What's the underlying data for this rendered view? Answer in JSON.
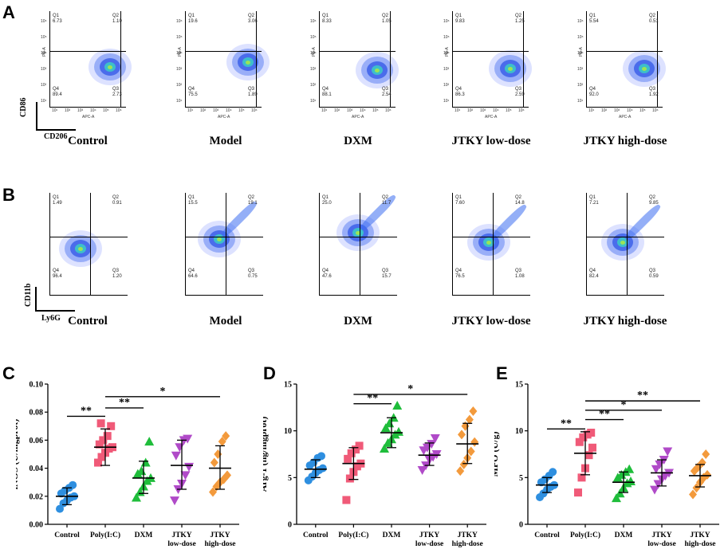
{
  "panels": {
    "A": {
      "letter": "A",
      "x_marker": "CD206",
      "y_marker": "CD86",
      "x_axis_title": "APC-A",
      "y_axis_title": "PE-A",
      "plots": [
        {
          "group": "Control",
          "q1": "6.73",
          "q2": "1.10",
          "q3": "2.73",
          "q4": "89.4"
        },
        {
          "group": "Model",
          "q1": "19.6",
          "q2": "3.06",
          "q3": "1.89",
          "q4": "75.5"
        },
        {
          "group": "DXM",
          "q1": "8.33",
          "q2": "1.05",
          "q3": "2.54",
          "q4": "88.1"
        },
        {
          "group": "JTKY low-dose",
          "q1": "9.83",
          "q2": "1.25",
          "q3": "2.59",
          "q4": "86.3"
        },
        {
          "group": "JTKY high-dose",
          "q1": "5.54",
          "q2": "0.51",
          "q3": "1.92",
          "q4": "92.0"
        }
      ]
    },
    "B": {
      "letter": "B",
      "x_marker": "Ly6G",
      "y_marker": "CD11b",
      "plots": [
        {
          "group": "Control",
          "q1": "1.49",
          "q2": "0.91",
          "q3": "1.20",
          "q4": "96.4"
        },
        {
          "group": "Model",
          "q1": "15.5",
          "q2": "19.1",
          "q3": "0.75",
          "q4": "64.6"
        },
        {
          "group": "DXM",
          "q1": "25.0",
          "q2": "11.7",
          "q3": "15.7",
          "q4": "47.6"
        },
        {
          "group": "JTKY low-dose",
          "q1": "7.60",
          "q2": "14.8",
          "q3": "1.08",
          "q4": "76.5"
        },
        {
          "group": "JTKY high-dose",
          "q1": "7.21",
          "q2": "9.85",
          "q3": "0.59",
          "q4": "82.4"
        }
      ]
    },
    "C": {
      "letter": "C"
    },
    "D": {
      "letter": "D"
    },
    "E": {
      "letter": "E"
    }
  },
  "quadrant_labels": [
    "Q1",
    "Q2",
    "Q3",
    "Q4"
  ],
  "tick_labels": [
    "10¹",
    "10²",
    "10³",
    "10⁴",
    "10⁵",
    "10⁶"
  ],
  "colors": {
    "Control": "#2e8fe0",
    "Poly(I:C)": "#f05a78",
    "DXM": "#1fbd3b",
    "JTKY low-dose": "#b04ac8",
    "JTKY high-dose": "#f39a3c"
  },
  "chart_data": [
    {
      "type": "scatter",
      "panel": "C",
      "ylabel": "iNOS (U/mgprot)",
      "ylim": [
        0.0,
        0.1
      ],
      "yticks": [
        "0.00",
        "0.02",
        "0.04",
        "0.06",
        "0.08",
        "0.10"
      ],
      "categories": [
        [
          "Control"
        ],
        [
          "Poly(I:C)"
        ],
        [
          "DXM"
        ],
        [
          "JTKY",
          "low-dose"
        ],
        [
          "JTKY",
          "high-dose"
        ]
      ],
      "groups": [
        {
          "name": "Control",
          "marker": "circle",
          "mean": 0.02,
          "sd_low": 0.014,
          "sd_high": 0.026,
          "points": [
            0.011,
            0.015,
            0.017,
            0.019,
            0.02,
            0.022,
            0.024,
            0.026,
            0.028
          ]
        },
        {
          "name": "Poly(I:C)",
          "marker": "square",
          "mean": 0.055,
          "sd_low": 0.042,
          "sd_high": 0.068,
          "points": [
            0.044,
            0.048,
            0.051,
            0.054,
            0.055,
            0.057,
            0.06,
            0.063,
            0.07,
            0.072
          ]
        },
        {
          "name": "DXM",
          "marker": "triangle-up",
          "mean": 0.033,
          "sd_low": 0.022,
          "sd_high": 0.045,
          "points": [
            0.019,
            0.023,
            0.027,
            0.031,
            0.033,
            0.036,
            0.038,
            0.044,
            0.059
          ]
        },
        {
          "name": "JTKY low-dose",
          "marker": "triangle-down",
          "mean": 0.042,
          "sd_low": 0.025,
          "sd_high": 0.06,
          "points": [
            0.017,
            0.025,
            0.029,
            0.035,
            0.041,
            0.049,
            0.055,
            0.06,
            0.061
          ]
        },
        {
          "name": "JTKY high-dose",
          "marker": "diamond",
          "mean": 0.04,
          "sd_low": 0.025,
          "sd_high": 0.056,
          "points": [
            0.023,
            0.027,
            0.03,
            0.032,
            0.035,
            0.044,
            0.05,
            0.059,
            0.063
          ]
        }
      ],
      "significance": [
        {
          "from": 0,
          "to": 1,
          "label": "**",
          "y": 0.077
        },
        {
          "from": 1,
          "to": 2,
          "label": "**",
          "y": 0.083
        },
        {
          "from": 1,
          "to": 4,
          "label": "*",
          "y": 0.091
        }
      ]
    },
    {
      "type": "scatter",
      "panel": "D",
      "ylabel": "Arg-1 (ng/mgprot)",
      "ylim": [
        0,
        15
      ],
      "yticks": [
        "0",
        "5",
        "10",
        "15"
      ],
      "categories": [
        [
          "Control"
        ],
        [
          "Poly(I:C)"
        ],
        [
          "DXM"
        ],
        [
          "JTKY",
          "low-dose"
        ],
        [
          "JTKY",
          "high-dose"
        ]
      ],
      "groups": [
        {
          "name": "Control",
          "marker": "circle",
          "mean": 5.9,
          "sd_low": 5.0,
          "sd_high": 6.9,
          "points": [
            4.7,
            5.1,
            5.5,
            5.8,
            6.0,
            6.3,
            6.6,
            7.1,
            7.3
          ]
        },
        {
          "name": "Poly(I:C)",
          "marker": "square",
          "mean": 6.5,
          "sd_low": 4.8,
          "sd_high": 8.2,
          "points": [
            2.6,
            4.9,
            5.6,
            6.2,
            6.5,
            7.0,
            7.6,
            8.0,
            8.4
          ]
        },
        {
          "name": "DXM",
          "marker": "triangle-up",
          "mean": 9.8,
          "sd_low": 8.2,
          "sd_high": 11.4,
          "points": [
            8.1,
            8.7,
            9.1,
            9.6,
            9.9,
            10.3,
            10.8,
            11.4,
            12.7
          ]
        },
        {
          "name": "JTKY low-dose",
          "marker": "triangle-down",
          "mean": 7.4,
          "sd_low": 6.3,
          "sd_high": 8.7,
          "points": [
            5.8,
            6.3,
            6.9,
            7.2,
            7.5,
            7.9,
            8.2,
            8.6,
            9.2
          ]
        },
        {
          "name": "JTKY high-dose",
          "marker": "diamond",
          "mean": 8.6,
          "sd_low": 6.5,
          "sd_high": 10.8,
          "points": [
            5.7,
            6.4,
            7.1,
            7.8,
            8.8,
            9.6,
            10.5,
            11.2,
            12.1
          ]
        }
      ],
      "significance": [
        {
          "from": 1,
          "to": 2,
          "label": "**",
          "y": 12.9
        },
        {
          "from": 1,
          "to": 4,
          "label": "*",
          "y": 13.9
        }
      ]
    },
    {
      "type": "scatter",
      "panel": "E",
      "ylabel": "MPO (U/g)",
      "ylim": [
        0,
        15
      ],
      "yticks": [
        "0",
        "5",
        "10",
        "15"
      ],
      "categories": [
        [
          "Control"
        ],
        [
          "Poly(I:C)"
        ],
        [
          "DXM"
        ],
        [
          "JTKY",
          "low-dose"
        ],
        [
          "JTKY",
          "high-dose"
        ]
      ],
      "groups": [
        {
          "name": "Control",
          "marker": "circle",
          "mean": 4.2,
          "sd_low": 3.4,
          "sd_high": 5.0,
          "points": [
            2.9,
            3.3,
            3.7,
            4.0,
            4.2,
            4.5,
            4.8,
            5.2,
            5.6
          ]
        },
        {
          "name": "Poly(I:C)",
          "marker": "square",
          "mean": 7.6,
          "sd_low": 5.3,
          "sd_high": 9.9,
          "points": [
            3.4,
            5.0,
            6.0,
            7.4,
            8.2,
            8.8,
            9.3,
            9.6,
            9.8
          ]
        },
        {
          "name": "DXM",
          "marker": "triangle-up",
          "mean": 4.5,
          "sd_low": 3.4,
          "sd_high": 5.6,
          "points": [
            2.8,
            3.3,
            3.9,
            4.4,
            4.6,
            5.0,
            5.3,
            5.6,
            5.9
          ]
        },
        {
          "name": "JTKY low-dose",
          "marker": "triangle-down",
          "mean": 5.5,
          "sd_low": 4.1,
          "sd_high": 6.9,
          "points": [
            3.7,
            4.3,
            4.8,
            5.2,
            5.5,
            5.9,
            6.4,
            6.9,
            7.8
          ]
        },
        {
          "name": "JTKY high-dose",
          "marker": "diamond",
          "mean": 5.2,
          "sd_low": 4.0,
          "sd_high": 6.4,
          "points": [
            3.2,
            3.9,
            4.5,
            5.0,
            5.3,
            5.7,
            6.1,
            6.6,
            7.5
          ]
        }
      ],
      "significance": [
        {
          "from": 0,
          "to": 1,
          "label": "**",
          "y": 10.2
        },
        {
          "from": 1,
          "to": 2,
          "label": "**",
          "y": 11.2
        },
        {
          "from": 1,
          "to": 3,
          "label": "*",
          "y": 12.2
        },
        {
          "from": 1,
          "to": 4,
          "label": "**",
          "y": 13.2
        }
      ]
    }
  ]
}
